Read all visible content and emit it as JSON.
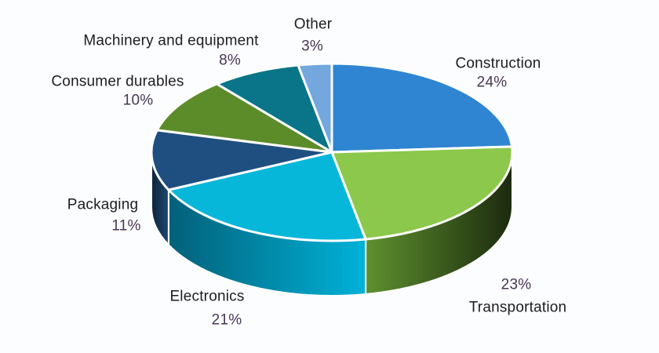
{
  "chart_data": {
    "type": "pie",
    "style": "3d",
    "title": "",
    "legend": "none",
    "labels_position": "outside",
    "start_angle_deg": 0,
    "direction": "clockwise",
    "background": "#fcfdfe",
    "label_text_color": "#1d1d1f",
    "value_text_color": "#473756",
    "separator_color": "#ffffff",
    "slices": [
      {
        "label": "Construction",
        "value": 24,
        "pct_label": "24%",
        "color": "#2F85D1",
        "side_from": "#1c5globe",
        "side_to": "#1a4c7e"
      },
      {
        "label": "Transportation",
        "value": 23,
        "pct_label": "23%",
        "color": "#8CC84B",
        "side_from": "#5e9130",
        "side_to": "#1c2a0e"
      },
      {
        "label": "Electronics",
        "value": 21,
        "pct_label": "21%",
        "color": "#06B7DA",
        "side_from": "#036079",
        "side_to": "#00b2d8"
      },
      {
        "label": "Packaging",
        "value": 11,
        "pct_label": "11%",
        "color": "#1E4F80",
        "side_from": "#0f2338",
        "side_to": "#1d4871"
      },
      {
        "label": "Consumer durables",
        "value": 10,
        "pct_label": "10%",
        "color": "#5C8C2A",
        "side_from": "#39591a",
        "side_to": "#39591a"
      },
      {
        "label": "Machinery and equipment",
        "value": 8,
        "pct_label": "8%",
        "color": "#0A7588",
        "side_from": "#064a56",
        "side_to": "#064a56"
      },
      {
        "label": "Other",
        "value": 3,
        "pct_label": "3%",
        "color": "#73A7DE",
        "side_from": "#3f6ea6",
        "side_to": "#3f6ea6"
      }
    ]
  }
}
